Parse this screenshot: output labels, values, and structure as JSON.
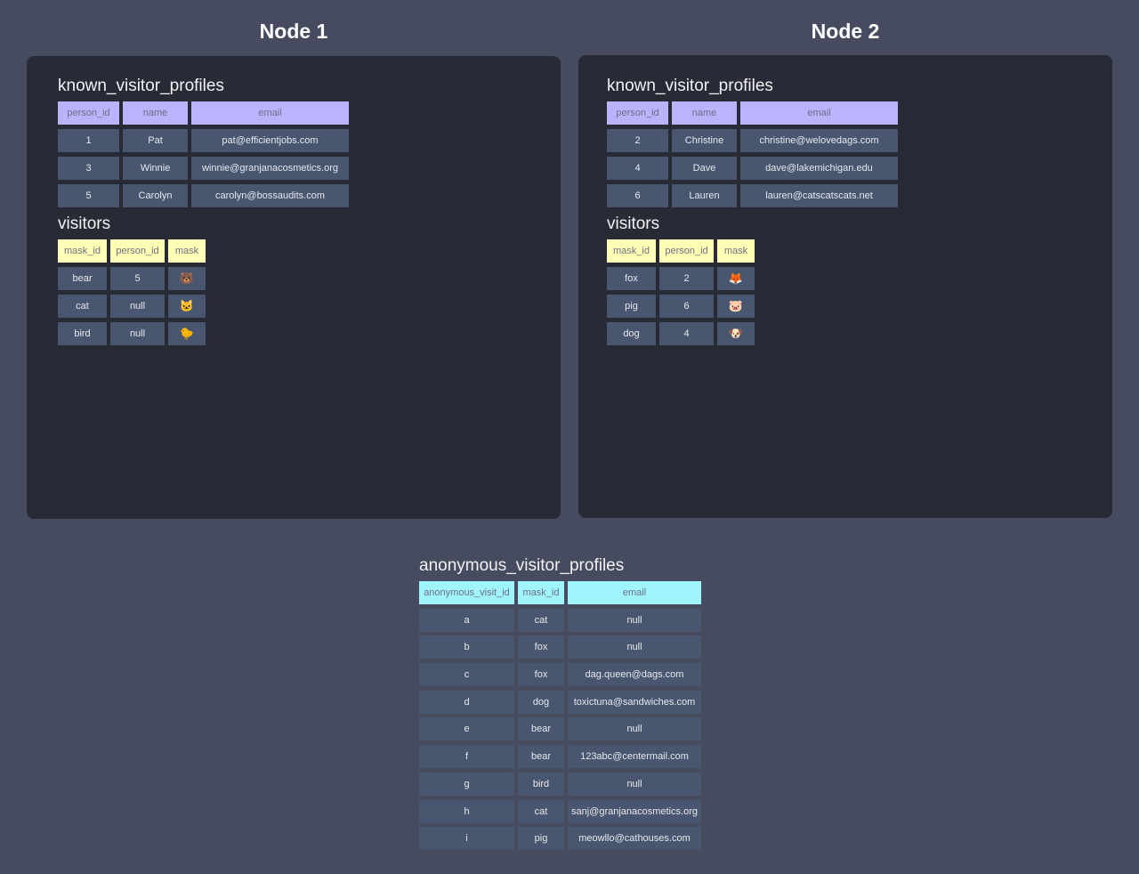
{
  "colors": {
    "purple_header": "#bcb3fd",
    "yellow_header": "#ffffb5",
    "cyan_header": "#a0f5fd",
    "cell": "#485670",
    "panel": "#282a36",
    "background": "#464b5f"
  },
  "nodes": [
    {
      "title": "Node 1",
      "known_visitor_profiles": {
        "title": "known_visitor_profiles",
        "columns": [
          "person_id",
          "name",
          "email"
        ],
        "rows": [
          [
            "1",
            "Pat",
            "pat@efficientjobs.com"
          ],
          [
            "3",
            "Winnie",
            "winnie@granjanacosmetics.org"
          ],
          [
            "5",
            "Carolyn",
            "carolyn@bossaudits.com"
          ]
        ]
      },
      "visitors": {
        "title": "visitors",
        "columns": [
          "mask_id",
          "person_id",
          "mask"
        ],
        "rows": [
          [
            "bear",
            "5",
            "🐻"
          ],
          [
            "cat",
            "null",
            "🐱"
          ],
          [
            "bird",
            "null",
            "🐤"
          ]
        ]
      }
    },
    {
      "title": "Node 2",
      "known_visitor_profiles": {
        "title": "known_visitor_profiles",
        "columns": [
          "person_id",
          "name",
          "email"
        ],
        "rows": [
          [
            "2",
            "Christine",
            "christine@welovedags.com"
          ],
          [
            "4",
            "Dave",
            "dave@lakemichigan.edu"
          ],
          [
            "6",
            "Lauren",
            "lauren@catscatscats.net"
          ]
        ]
      },
      "visitors": {
        "title": "visitors",
        "columns": [
          "mask_id",
          "person_id",
          "mask"
        ],
        "rows": [
          [
            "fox",
            "2",
            "🦊"
          ],
          [
            "pig",
            "6",
            "🐷"
          ],
          [
            "dog",
            "4",
            "🐶"
          ]
        ]
      }
    }
  ],
  "anonymous_visitor_profiles": {
    "title": "anonymous_visitor_profiles",
    "columns": [
      "anonymous_visit_id",
      "mask_id",
      "email"
    ],
    "rows": [
      [
        "a",
        "cat",
        "null"
      ],
      [
        "b",
        "fox",
        "null"
      ],
      [
        "c",
        "fox",
        "dag.queen@dags.com"
      ],
      [
        "d",
        "dog",
        "toxictuna@sandwiches.com"
      ],
      [
        "e",
        "bear",
        "null"
      ],
      [
        "f",
        "bear",
        "123abc@centermail.com"
      ],
      [
        "g",
        "bird",
        "null"
      ],
      [
        "h",
        "cat",
        "sanj@granjanacosmetics.org"
      ],
      [
        "i",
        "pig",
        "meowllo@cathouses.com"
      ]
    ]
  }
}
